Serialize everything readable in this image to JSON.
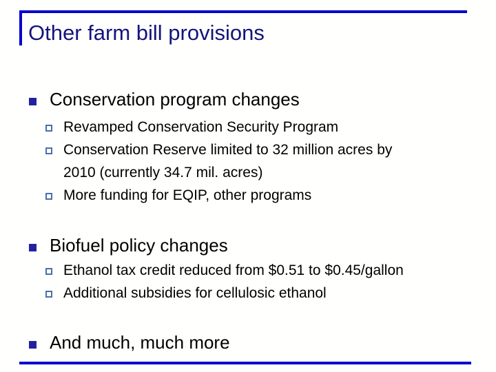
{
  "slide": {
    "title": "Other farm bill provisions",
    "colors": {
      "accent": "#0202CC",
      "title": "#14147C",
      "bullet": "#2222A0",
      "sub_bullet": "#4A6FA8",
      "body_text": "#000000",
      "background": "#FFFFFE"
    },
    "sections": [
      {
        "heading": "Conservation program changes",
        "items": [
          "Revamped Conservation Security Program",
          "Conservation Reserve limited to 32 million acres by\n2010 (currently 34.7 mil. acres)",
          "More funding for EQIP, other programs"
        ]
      },
      {
        "heading": "Biofuel policy changes",
        "items": [
          "Ethanol tax credit reduced from $0.51 to $0.45/gallon",
          "Additional subsidies for cellulosic ethanol"
        ]
      },
      {
        "heading": "And much, much more",
        "items": []
      }
    ]
  }
}
